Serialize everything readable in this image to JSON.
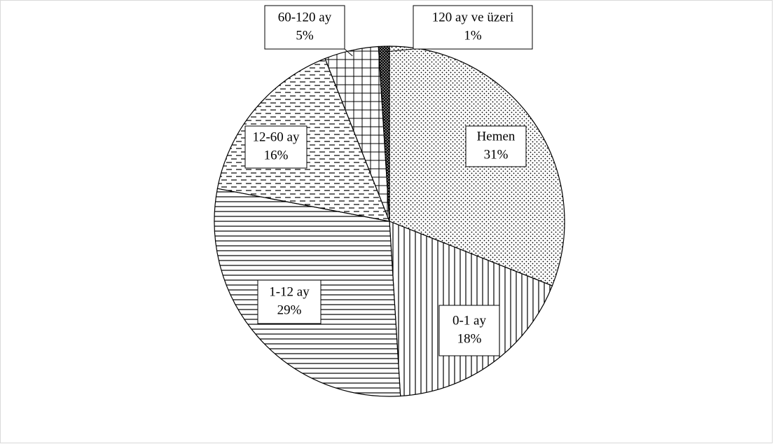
{
  "chart_data": {
    "type": "pie",
    "categories": [
      "Hemen",
      "0-1 ay",
      "1-12 ay",
      "12-60 ay",
      "60-120 ay",
      "120 ay ve üzeri"
    ],
    "values": [
      31,
      18,
      29,
      16,
      5,
      1
    ],
    "value_labels": [
      "31%",
      "18%",
      "29%",
      "16%",
      "5%",
      "1%"
    ]
  }
}
